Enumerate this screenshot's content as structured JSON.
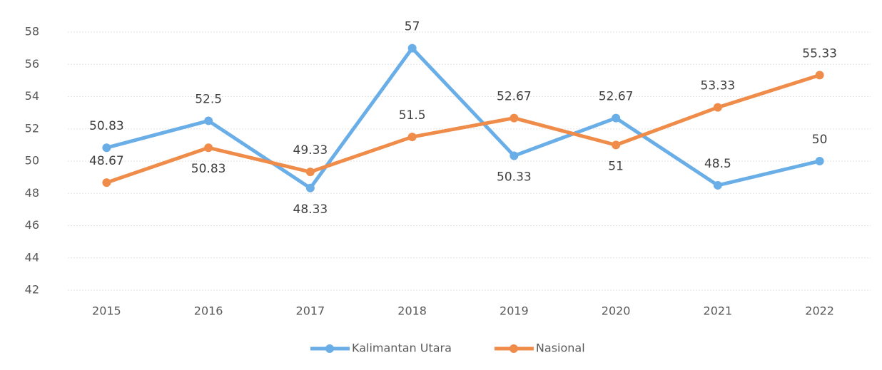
{
  "chart_data": {
    "type": "line",
    "categories": [
      "2015",
      "2016",
      "2017",
      "2018",
      "2019",
      "2020",
      "2021",
      "2022"
    ],
    "series": [
      {
        "name": "Kalimantan Utara",
        "color": "#6aaee8",
        "values": [
          50.83,
          52.5,
          48.33,
          57,
          50.33,
          52.67,
          48.5,
          50
        ]
      },
      {
        "name": "Nasional",
        "color": "#f08c4a",
        "values": [
          48.67,
          50.83,
          49.33,
          51.5,
          52.67,
          51,
          53.33,
          55.33
        ]
      }
    ],
    "ylim": [
      42,
      58
    ],
    "yticks": [
      42,
      44,
      46,
      48,
      50,
      52,
      54,
      56,
      58
    ],
    "grid": true,
    "legend": "bottom"
  }
}
